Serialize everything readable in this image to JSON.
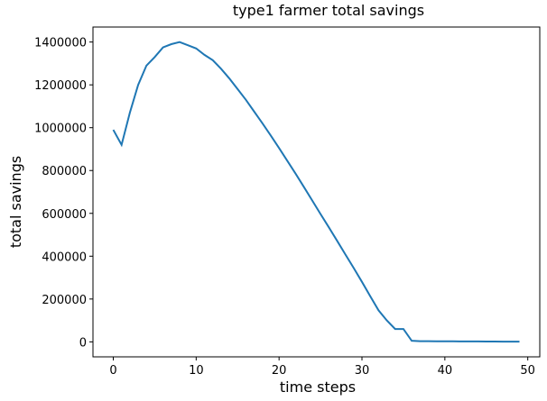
{
  "chart_data": {
    "type": "line",
    "title": "type1 farmer total savings",
    "x_label": "time steps",
    "y_label": "total savings",
    "x": [
      0,
      1,
      2,
      3,
      4,
      5,
      6,
      7,
      8,
      9,
      10,
      11,
      12,
      13,
      14,
      15,
      16,
      17,
      18,
      19,
      20,
      21,
      22,
      23,
      24,
      25,
      26,
      27,
      28,
      29,
      30,
      31,
      32,
      33,
      34,
      35,
      36,
      37,
      38,
      39,
      40,
      41,
      42,
      43,
      44,
      45,
      46,
      47,
      48,
      49
    ],
    "series": [
      {
        "name": "total savings",
        "color": "#1f77b4",
        "values": [
          990000,
          920000,
          1070000,
          1200000,
          1290000,
          1330000,
          1375000,
          1390000,
          1400000,
          1385000,
          1370000,
          1340000,
          1315000,
          1275000,
          1230000,
          1180000,
          1130000,
          1075000,
          1020000,
          963000,
          905000,
          845000,
          785000,
          723000,
          660000,
          597000,
          535000,
          472000,
          408000,
          345000,
          280000,
          213000,
          147000,
          100000,
          60000,
          60000,
          5000,
          3000,
          3000,
          2800,
          2600,
          2400,
          2200,
          2000,
          1800,
          1600,
          1400,
          1200,
          1000,
          800
        ]
      }
    ],
    "xlim": [
      -2.45,
      51.45
    ],
    "ylim": [
      -70000,
      1470000
    ],
    "xticks": [
      0,
      10,
      20,
      30,
      40,
      50
    ],
    "yticks": [
      0,
      200000,
      400000,
      600000,
      800000,
      1000000,
      1200000,
      1400000
    ]
  }
}
